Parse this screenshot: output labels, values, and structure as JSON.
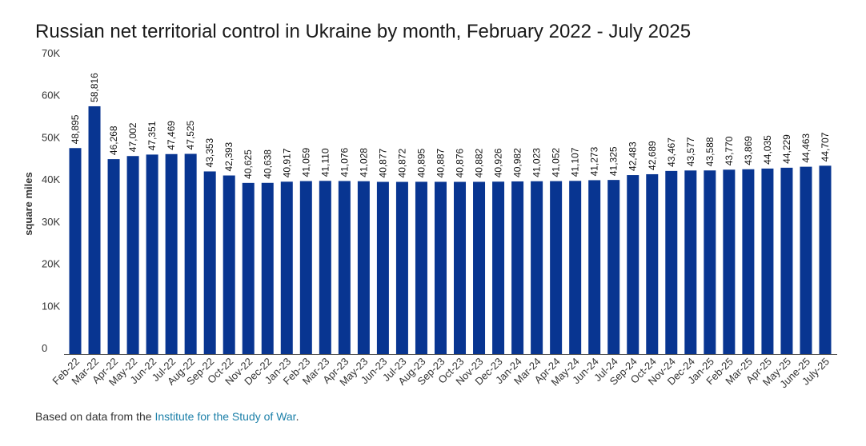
{
  "chart_data": {
    "type": "bar",
    "title": "Russian net territorial control in Ukraine by month, February 2022 - July 2025",
    "xlabel": "",
    "ylabel": "square miles",
    "ylim": [
      0,
      70000
    ],
    "yticks": [
      0,
      10000,
      20000,
      30000,
      40000,
      50000,
      60000,
      70000
    ],
    "ytick_labels": [
      "0",
      "10K",
      "20K",
      "30K",
      "40K",
      "50K",
      "60K",
      "70K"
    ],
    "grid": false,
    "bar_color": "#083591",
    "categories": [
      "Feb-22",
      "Mar-22",
      "Apr-22",
      "May-22",
      "Jun-22",
      "Jul-22",
      "Aug-22",
      "Sep-22",
      "Oct-22",
      "Nov-22",
      "Dec-22",
      "Jan-23",
      "Feb-23",
      "Mar-23",
      "Apr-23",
      "May-23",
      "Jun-23",
      "Jul-23",
      "Aug-23",
      "Sep-23",
      "Oct-23",
      "Nov-23",
      "Dec-23",
      "Jan-24",
      "Mar-24",
      "Apr-24",
      "May-24",
      "Jun-24",
      "Jul-24",
      "Sep-24",
      "Oct-24",
      "Nov-24",
      "Dec-24",
      "Jan-25",
      "Feb-25",
      "Mar-25",
      "Apr-25",
      "May-25",
      "June-25",
      "July-25"
    ],
    "values": [
      48895,
      58816,
      46268,
      47002,
      47351,
      47469,
      47525,
      43353,
      42393,
      40625,
      40638,
      40917,
      41059,
      41110,
      41076,
      41028,
      40877,
      40872,
      40895,
      40887,
      40876,
      40882,
      40926,
      40982,
      41023,
      41052,
      41107,
      41273,
      41325,
      42483,
      42689,
      43467,
      43577,
      43588,
      43770,
      43869,
      44035,
      44229,
      44463,
      44707
    ],
    "data_labels": [
      "48,895",
      "58,816",
      "46,268",
      "47,002",
      "47,351",
      "47,469",
      "47,525",
      "43,353",
      "42,393",
      "40,625",
      "40,638",
      "40,917",
      "41,059",
      "41,110",
      "41,076",
      "41,028",
      "40,877",
      "40,872",
      "40,895",
      "40,887",
      "40,876",
      "40,882",
      "40,926",
      "40,982",
      "41,023",
      "41,052",
      "41,107",
      "41,273",
      "41,325",
      "42,483",
      "42,689",
      "43,467",
      "43,577",
      "43,588",
      "43,770",
      "43,869",
      "44,035",
      "44,229",
      "44,463",
      "44,707"
    ]
  },
  "source": {
    "prefix": "Based on data from the ",
    "link_text": "Institute for the Study of War",
    "suffix": "."
  }
}
